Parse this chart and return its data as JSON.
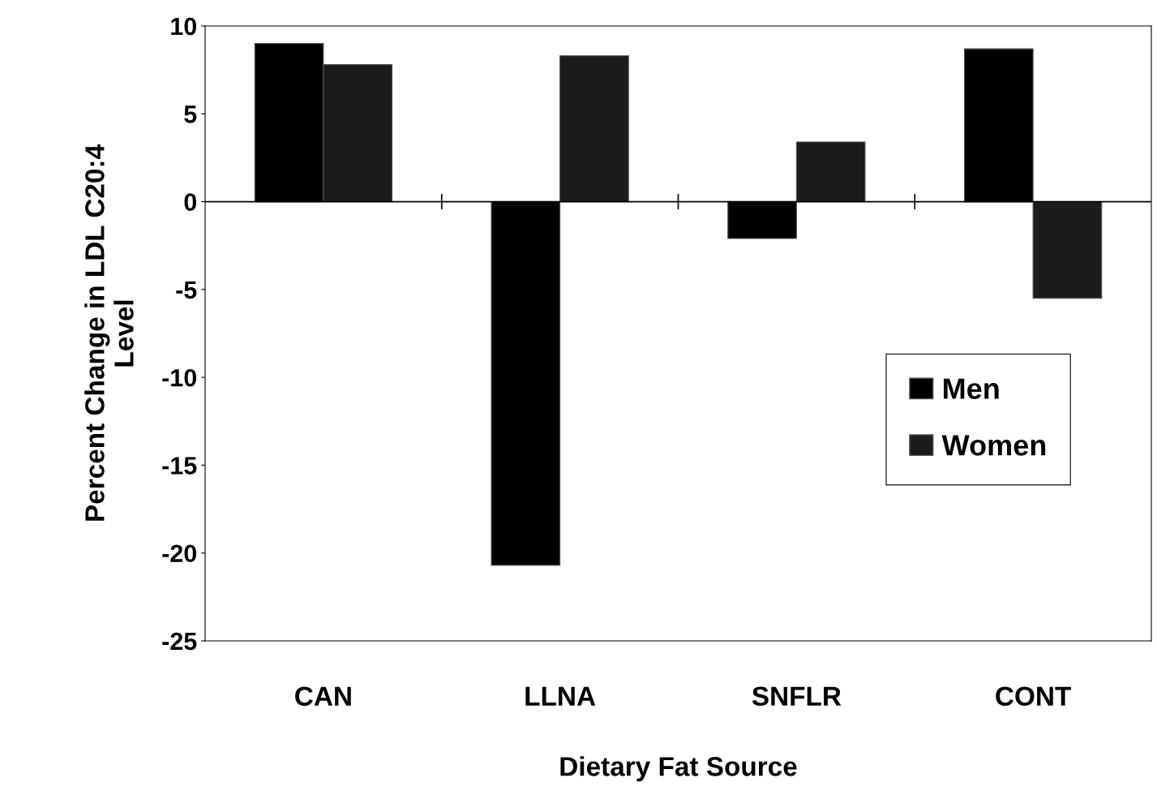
{
  "chart_data": {
    "type": "bar",
    "xlabel": "Dietary Fat Source",
    "ylabel": "Percent Change in LDL C20:4\nLevel",
    "categories": [
      "CAN",
      "LLNA",
      "SNFLR",
      "CONT"
    ],
    "series": [
      {
        "name": "Men",
        "color": "#000000",
        "values": [
          9.0,
          -20.7,
          -2.1,
          8.7
        ]
      },
      {
        "name": "Women",
        "color": "#1c1c1c",
        "values": [
          7.8,
          8.3,
          3.4,
          -5.5
        ]
      }
    ],
    "ylim": [
      -25,
      10
    ],
    "yticks": [
      -25,
      -20,
      -15,
      -10,
      -5,
      0,
      5,
      10
    ],
    "ref_lines": [
      {
        "axis": "y",
        "value": 0,
        "color": "#000000"
      }
    ],
    "grid": false,
    "legend": "right"
  }
}
